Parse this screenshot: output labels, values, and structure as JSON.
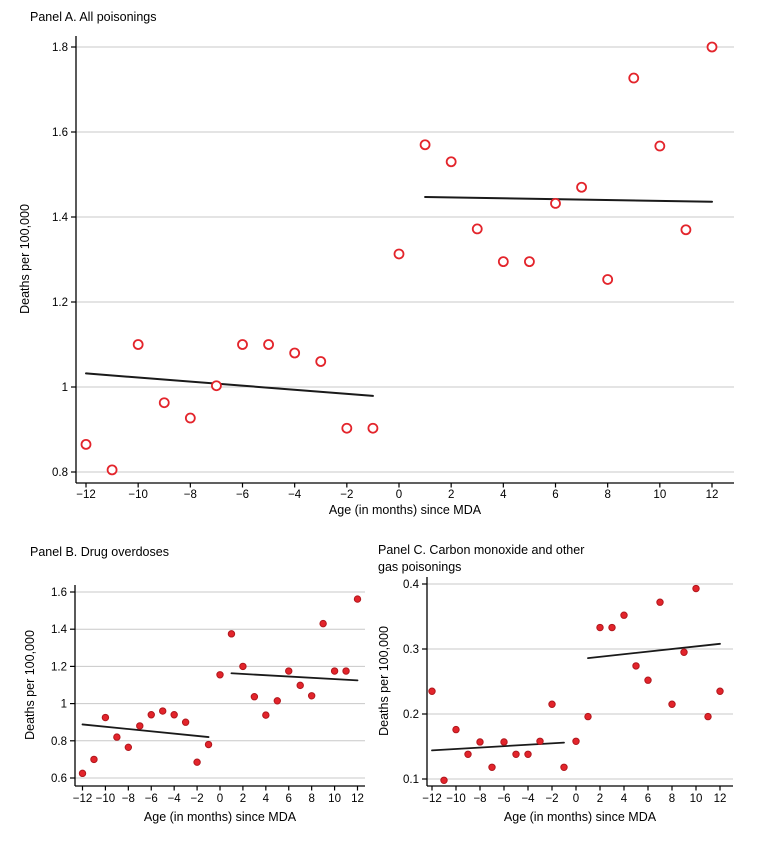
{
  "colors": {
    "marker_red": "#e3242b",
    "marker_edge": "#b1171d",
    "fit_line": "#1a1a1a",
    "gridline": "#c8c8c8",
    "axis": "#000000",
    "background": "#ffffff"
  },
  "chart_data": [
    {
      "id": "panel-a",
      "type": "scatter",
      "title_lines": [
        "Panel A. All poisonings"
      ],
      "xlabel": "Age (in months) since MDA",
      "ylabel": "Deaths per 100,000",
      "xlim": [
        -12.5,
        12.8
      ],
      "ylim": [
        0.8,
        1.8
      ],
      "grid": true,
      "marker": "circle-open",
      "xticks": [
        -12,
        -10,
        -8,
        -6,
        -4,
        -2,
        0,
        2,
        4,
        6,
        8,
        10,
        12
      ],
      "xtick_labels": [
        "−12",
        "−10",
        "−8",
        "−6",
        "−4",
        "−2",
        "0",
        "2",
        "4",
        "6",
        "8",
        "10",
        "12"
      ],
      "ytick_values": [
        0.8,
        1.0,
        1.2,
        1.4,
        1.6,
        1.8
      ],
      "ytick_labels": [
        "0.8",
        "1",
        "1.2",
        "1.4",
        "1.6",
        "1.8"
      ],
      "x": [
        -12,
        -11,
        -10,
        -9,
        -8,
        -7,
        -6,
        -5,
        -4,
        -3,
        -2,
        -1,
        0,
        1,
        2,
        3,
        4,
        5,
        6,
        7,
        8,
        9,
        10,
        11,
        12
      ],
      "y": [
        0.865,
        0.805,
        1.1,
        0.963,
        0.927,
        1.003,
        1.1,
        1.1,
        1.08,
        1.06,
        0.903,
        0.903,
        1.313,
        1.57,
        1.53,
        1.372,
        1.295,
        1.295,
        1.432,
        1.47,
        1.253,
        1.727,
        1.567,
        1.37,
        1.8
      ],
      "fit_segments": [
        [
          -12,
          1.032,
          -1,
          0.979
        ],
        [
          1,
          1.447,
          12,
          1.436
        ]
      ]
    },
    {
      "id": "panel-b",
      "type": "scatter",
      "title_lines": [
        "Panel B. Drug overdoses"
      ],
      "xlabel": "Age (in months) since MDA",
      "ylabel": "Deaths per 100,000",
      "xlim": [
        -12.6,
        12.7
      ],
      "ylim": [
        0.6,
        1.6
      ],
      "grid": true,
      "marker": "circle-filled",
      "xticks": [
        -12,
        -10,
        -8,
        -6,
        -4,
        -2,
        0,
        2,
        4,
        6,
        8,
        10,
        12
      ],
      "xtick_labels": [
        "−12",
        "−10",
        "−8",
        "−6",
        "−4",
        "−2",
        "0",
        "2",
        "4",
        "6",
        "8",
        "10",
        "12"
      ],
      "ytick_values": [
        0.6,
        0.8,
        1.0,
        1.2,
        1.4,
        1.6
      ],
      "ytick_labels": [
        "0.6",
        "0.8",
        "1",
        "1.2",
        "1.4",
        "1.6"
      ],
      "x": [
        -12,
        -11,
        -10,
        -9,
        -8,
        -7,
        -6,
        -5,
        -4,
        -3,
        -2,
        -1,
        0,
        1,
        2,
        3,
        4,
        5,
        6,
        7,
        8,
        9,
        10,
        11,
        12
      ],
      "y": [
        0.625,
        0.7,
        0.925,
        0.82,
        0.765,
        0.88,
        0.94,
        0.96,
        0.94,
        0.9,
        0.685,
        0.78,
        1.155,
        1.375,
        1.2,
        1.037,
        0.938,
        1.015,
        1.175,
        1.098,
        1.042,
        1.43,
        1.175,
        1.175,
        1.562
      ],
      "fit_segments": [
        [
          -12,
          0.888,
          -1,
          0.82
        ],
        [
          1,
          1.163,
          12,
          1.125
        ]
      ]
    },
    {
      "id": "panel-c",
      "type": "scatter",
      "title_lines": [
        "Panel C. Carbon monoxide and other",
        "gas poisonings"
      ],
      "xlabel": "Age (in months) since MDA",
      "ylabel": "Deaths per 100,000",
      "xlim": [
        -12.5,
        12.6
      ],
      "ylim": [
        0.1,
        0.4
      ],
      "grid": true,
      "marker": "circle-filled",
      "xticks": [
        -12,
        -10,
        -8,
        -6,
        -4,
        -2,
        0,
        2,
        4,
        6,
        8,
        10,
        12
      ],
      "xtick_labels": [
        "−12",
        "−10",
        "−8",
        "−6",
        "−4",
        "−2",
        "0",
        "2",
        "4",
        "6",
        "8",
        "10",
        "12"
      ],
      "ytick_values": [
        0.1,
        0.2,
        0.3,
        0.4
      ],
      "ytick_labels": [
        "0.1",
        "0.2",
        "0.3",
        "0.4"
      ],
      "x": [
        -12,
        -11,
        -10,
        -9,
        -8,
        -7,
        -6,
        -5,
        -4,
        -3,
        -2,
        -1,
        0,
        1,
        2,
        3,
        4,
        5,
        6,
        7,
        8,
        9,
        10,
        11,
        12
      ],
      "y": [
        0.235,
        0.098,
        0.176,
        0.138,
        0.157,
        0.118,
        0.157,
        0.138,
        0.138,
        0.158,
        0.215,
        0.118,
        0.158,
        0.196,
        0.333,
        0.333,
        0.352,
        0.274,
        0.252,
        0.372,
        0.215,
        0.295,
        0.393,
        0.196,
        0.235
      ],
      "fit_segments": [
        [
          -12,
          0.144,
          -1,
          0.156
        ],
        [
          1,
          0.286,
          12,
          0.308
        ]
      ]
    }
  ]
}
